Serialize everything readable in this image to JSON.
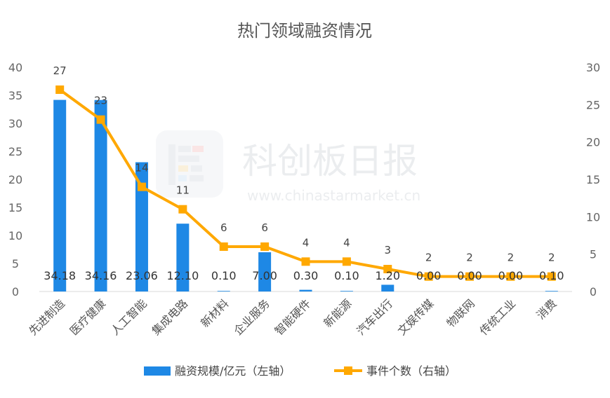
{
  "chart_data": {
    "type": "bar+line",
    "title": "热门领域融资情况",
    "categories": [
      "先进制造",
      "医疗健康",
      "人工智能",
      "集成电路",
      "新材料",
      "企业服务",
      "智能硬件",
      "新能源",
      "汽车出行",
      "文娱传媒",
      "物联网",
      "传统工业",
      "消费"
    ],
    "series": [
      {
        "name": "融资规模/亿元（左轴）",
        "type": "bar",
        "axis": "left",
        "color": "#1E88E5",
        "values": [
          34.18,
          34.16,
          23.06,
          12.1,
          0.1,
          7.0,
          0.3,
          0.1,
          1.2,
          0.0,
          0.0,
          0.0,
          0.1
        ],
        "labels": [
          "34.18",
          "34.16",
          "23.06",
          "12.10",
          "0.10",
          "7.00",
          "0.30",
          "0.10",
          "1.20",
          "0.00",
          "0.00",
          "0.00",
          "0.10"
        ]
      },
      {
        "name": "事件个数（右轴）",
        "type": "line",
        "axis": "right",
        "color": "#FFA800",
        "values": [
          27,
          23,
          14,
          11,
          6,
          6,
          4,
          4,
          3,
          2,
          2,
          2,
          2
        ],
        "labels": [
          "27",
          "23",
          "14",
          "11",
          "6",
          "6",
          "4",
          "4",
          "3",
          "2",
          "2",
          "2",
          "2"
        ]
      }
    ],
    "y_left": {
      "min": 0,
      "max": 40,
      "ticks": [
        "0",
        "5",
        "10",
        "15",
        "20",
        "25",
        "30",
        "35",
        "40"
      ]
    },
    "y_right": {
      "min": 0,
      "max": 30,
      "ticks": [
        "0",
        "5",
        "10",
        "15",
        "20",
        "25",
        "30"
      ]
    },
    "grid": false,
    "legend": "bottom"
  },
  "watermark": {
    "brand": "科创板日报",
    "url": "www.chinastarmarket.cn"
  }
}
